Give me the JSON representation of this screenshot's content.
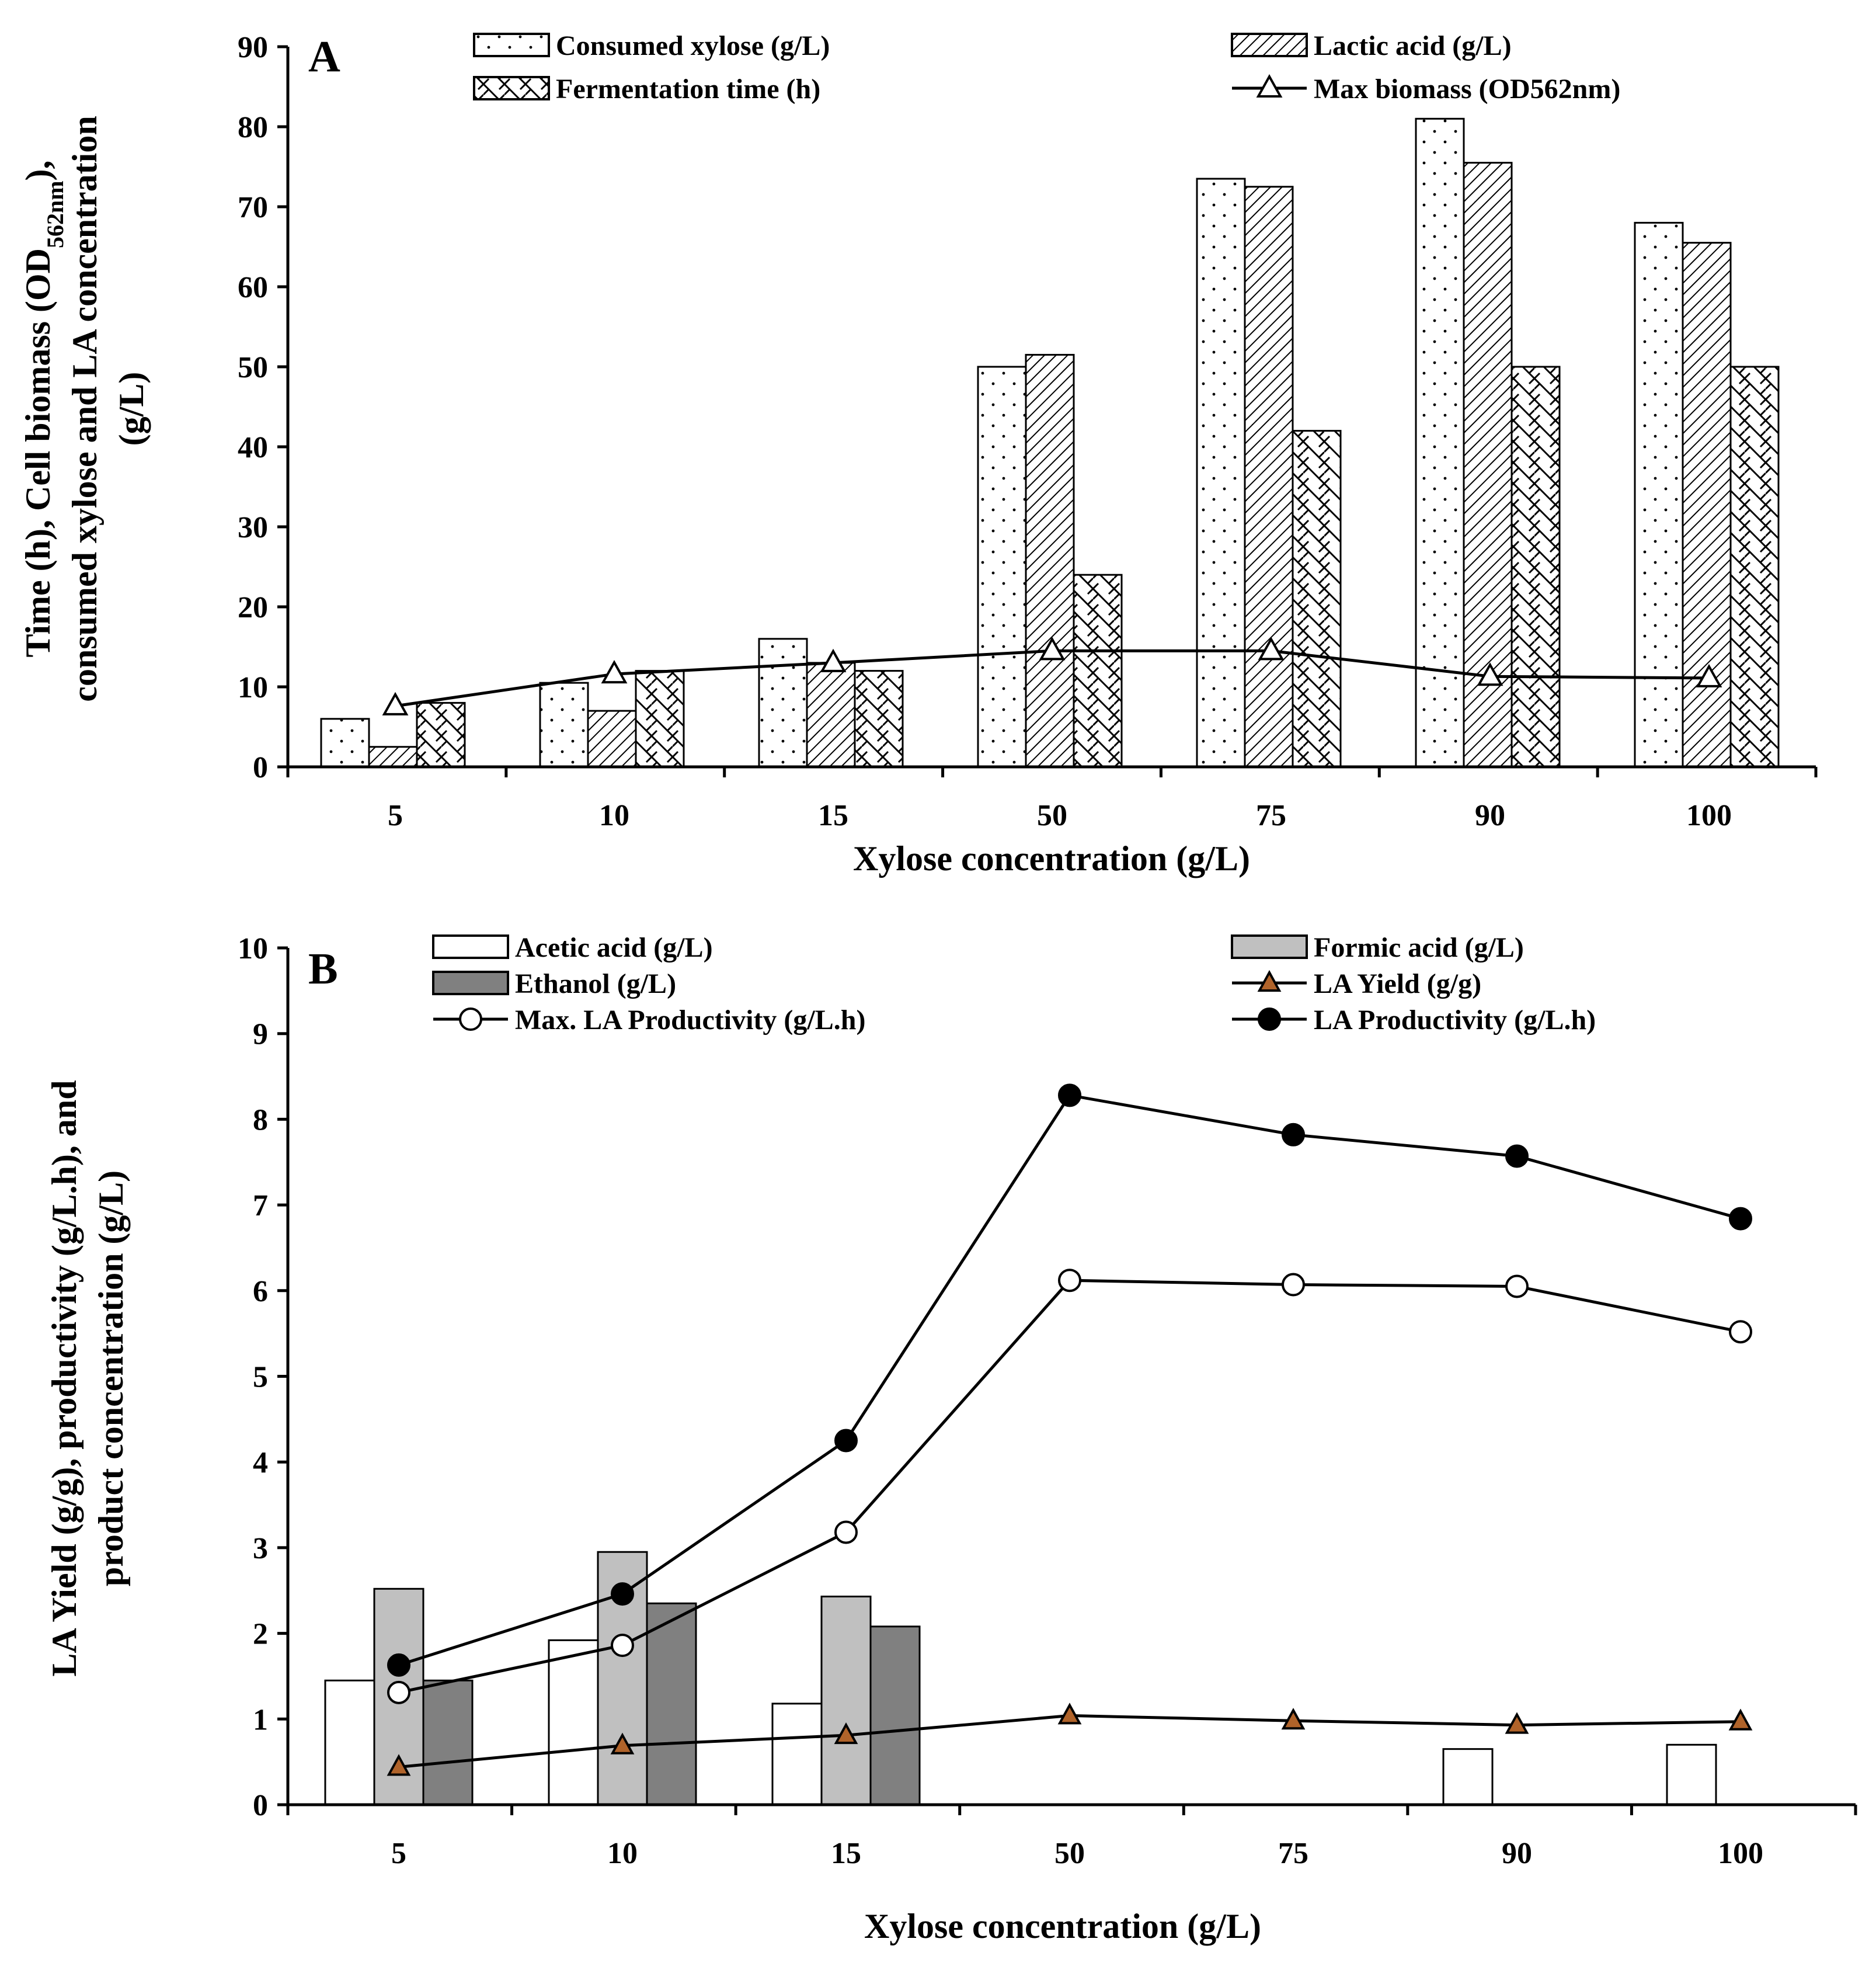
{
  "chart_data": [
    {
      "panel": "A",
      "type": "bar",
      "xlabel": "Xylose concentration (g/L)",
      "ylabel_lines": [
        "Time (h), Cell biomass (OD",
        "562nm",
        "),",
        "consumed xylose and LA concentration",
        "(g/L)"
      ],
      "ylim": [
        0,
        90
      ],
      "yticks": [
        0,
        10,
        20,
        30,
        40,
        50,
        60,
        70,
        80,
        90
      ],
      "categories": [
        "5",
        "10",
        "15",
        "50",
        "75",
        "90",
        "100"
      ],
      "series": [
        {
          "name": "Consumed xylose  (g/L)",
          "kind": "bar",
          "pattern": "dots",
          "values": [
            6,
            10.5,
            16,
            50,
            73.5,
            81,
            68
          ]
        },
        {
          "name": "Lactic acid  (g/L)",
          "kind": "bar",
          "pattern": "hatch",
          "values": [
            2.5,
            7,
            13,
            51.5,
            72.5,
            75.5,
            65.5
          ]
        },
        {
          "name": "Fermentation time (h)",
          "kind": "bar",
          "pattern": "weave",
          "values": [
            8,
            12,
            12,
            24,
            42,
            50,
            50
          ]
        },
        {
          "name": "Max biomass (OD562nm)",
          "kind": "line",
          "marker": "open-triangle",
          "values": [
            7.6,
            11.6,
            13,
            14.5,
            14.5,
            11.3,
            11.1
          ]
        }
      ]
    },
    {
      "panel": "B",
      "type": "bar",
      "xlabel": "Xylose concentration (g/L)",
      "ylabel_lines": [
        "LA Yield (g/g), productivity (g/L.h), and",
        "product concentration (g/L)"
      ],
      "ylim": [
        0,
        10
      ],
      "yticks": [
        0,
        1,
        2,
        3,
        4,
        5,
        6,
        7,
        8,
        9,
        10
      ],
      "categories": [
        "5",
        "10",
        "15",
        "50",
        "75",
        "90",
        "100"
      ],
      "series": [
        {
          "name": "Acetic acid (g/L)",
          "kind": "bar",
          "color": "#ffffff",
          "values": [
            1.45,
            1.92,
            1.18,
            0,
            0,
            0.65,
            0.7
          ]
        },
        {
          "name": "Formic acid  (g/L)",
          "kind": "bar",
          "color": "#c0c0c0",
          "values": [
            2.52,
            2.95,
            2.43,
            0,
            0,
            0,
            0
          ]
        },
        {
          "name": "Ethanol (g/L)",
          "kind": "bar",
          "color": "#808080",
          "values": [
            1.45,
            2.35,
            2.08,
            0,
            0,
            0,
            0
          ]
        },
        {
          "name": "LA Yield (g/g)",
          "kind": "line",
          "marker": "brown-triangle",
          "values": [
            0.44,
            0.69,
            0.81,
            1.04,
            0.98,
            0.93,
            0.97
          ]
        },
        {
          "name": "Max. LA Productivity (g/L.h)",
          "kind": "line",
          "marker": "open-circle",
          "values": [
            1.31,
            1.86,
            3.18,
            6.12,
            6.07,
            6.05,
            5.52
          ]
        },
        {
          "name": "LA Productivity (g/L.h)",
          "kind": "line",
          "marker": "filled-circle",
          "values": [
            1.63,
            2.46,
            4.25,
            8.28,
            7.82,
            7.57,
            6.84
          ]
        }
      ]
    }
  ]
}
